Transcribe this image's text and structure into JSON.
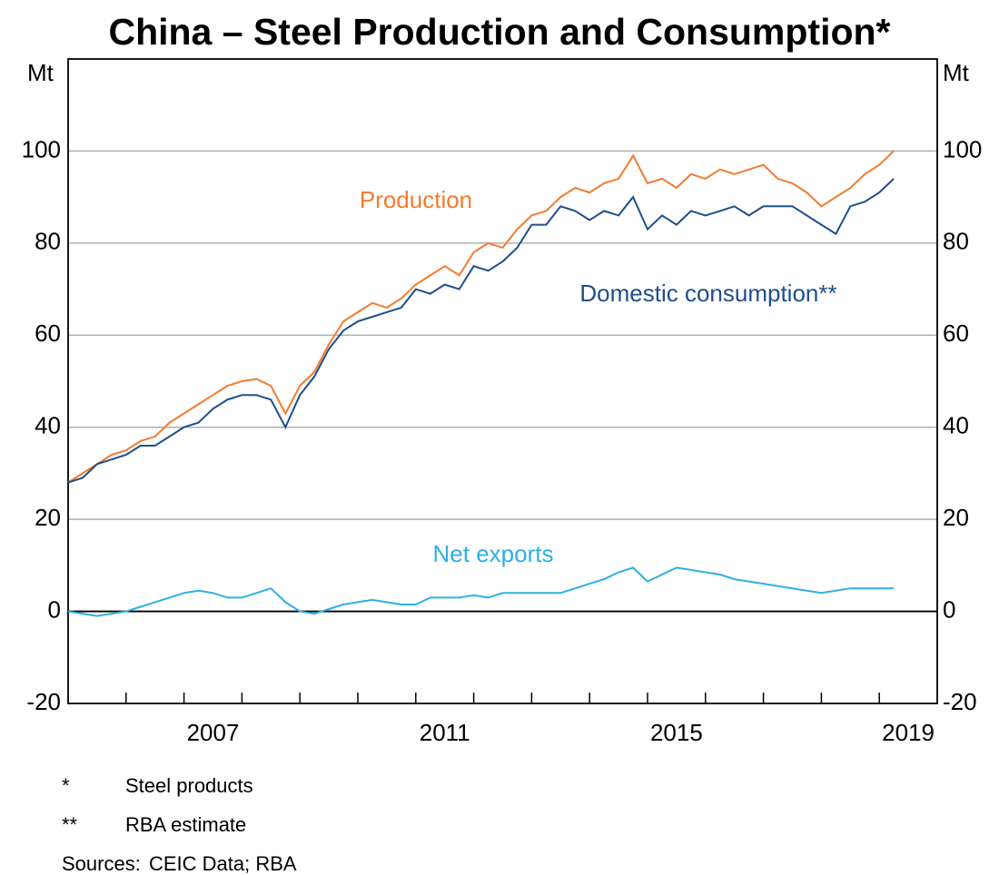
{
  "chart_data": {
    "type": "line",
    "title": "China – Steel Production and Consumption*",
    "y_unit_label": "Mt",
    "y2_unit_label": "Mt",
    "x": [
      2005.0,
      2005.25,
      2005.5,
      2005.75,
      2006.0,
      2006.25,
      2006.5,
      2006.75,
      2007.0,
      2007.25,
      2007.5,
      2007.75,
      2008.0,
      2008.25,
      2008.5,
      2008.75,
      2009.0,
      2009.25,
      2009.5,
      2009.75,
      2010.0,
      2010.25,
      2010.5,
      2010.75,
      2011.0,
      2011.25,
      2011.5,
      2011.75,
      2012.0,
      2012.25,
      2012.5,
      2012.75,
      2013.0,
      2013.25,
      2013.5,
      2013.75,
      2014.0,
      2014.25,
      2014.5,
      2014.75,
      2015.0,
      2015.25,
      2015.5,
      2015.75,
      2016.0,
      2016.25,
      2016.5,
      2016.75,
      2017.0,
      2017.25,
      2017.5,
      2017.75,
      2018.0,
      2018.25,
      2018.5,
      2018.75,
      2019.0,
      2019.25
    ],
    "series": [
      {
        "name": "Production",
        "color": "#f47b30",
        "values": [
          28,
          30,
          32,
          34,
          35,
          37,
          38,
          41,
          43,
          45,
          47,
          49,
          50,
          50.5,
          49,
          43,
          49,
          52,
          58,
          63,
          65,
          67,
          66,
          68,
          71,
          73,
          75,
          73,
          78,
          80,
          79,
          83,
          86,
          87,
          90,
          92,
          91,
          93,
          94,
          99,
          93,
          94,
          92,
          95,
          94,
          96,
          95,
          96,
          97,
          94,
          93,
          91,
          88,
          90,
          92,
          95,
          97,
          100
        ]
      },
      {
        "name": "Domestic consumption**",
        "color": "#1f4e8c",
        "values": [
          28,
          29,
          32,
          33,
          34,
          36,
          36,
          38,
          40,
          41,
          44,
          46,
          47,
          47,
          46,
          40,
          47,
          51,
          57,
          61,
          63,
          64,
          65,
          66,
          70,
          69,
          71,
          70,
          75,
          74,
          76,
          79,
          84,
          84,
          88,
          87,
          85,
          87,
          86,
          90,
          83,
          86,
          84,
          87,
          86,
          87,
          88,
          86,
          88,
          88,
          88,
          86,
          84,
          82,
          88,
          89,
          91,
          94
        ]
      },
      {
        "name": "Net exports",
        "color": "#2eaee6",
        "values": [
          0,
          -0.5,
          -1,
          -0.5,
          0,
          1,
          2,
          3,
          4,
          4.5,
          4,
          3,
          3,
          4,
          5,
          2,
          0,
          -0.5,
          0.5,
          1.5,
          2,
          2.5,
          2,
          1.5,
          1.5,
          3,
          3,
          3,
          3.5,
          3,
          4,
          4,
          4,
          4,
          4,
          5,
          6,
          7,
          8.5,
          9.5,
          6.5,
          8,
          9.5,
          9,
          8.5,
          8,
          7,
          6.5,
          6,
          5.5,
          5,
          4.5,
          4,
          4.5,
          5,
          5,
          5,
          5
        ]
      }
    ],
    "xlim": [
      2005,
      2020
    ],
    "xticks": [
      {
        "value": 2007.5,
        "label": "2007"
      },
      {
        "value": 2011.5,
        "label": "2011"
      },
      {
        "value": 2015.5,
        "label": "2015"
      },
      {
        "value": 2019.5,
        "label": "2019"
      }
    ],
    "year_ticks": [
      2006,
      2007,
      2008,
      2009,
      2010,
      2011,
      2012,
      2013,
      2014,
      2015,
      2016,
      2017,
      2018,
      2019
    ],
    "ylim": [
      -20,
      120
    ],
    "yticks": [
      -20,
      0,
      20,
      40,
      60,
      80,
      100
    ],
    "y2lim": [
      -20,
      120
    ],
    "y2ticks": [
      -20,
      0,
      20,
      40,
      60,
      80,
      100
    ],
    "grid": true,
    "footnotes": [
      {
        "marker": "*",
        "text": "Steel products"
      },
      {
        "marker": "**",
        "text": "RBA estimate"
      },
      {
        "marker": "Sources:",
        "text": "CEIC Data; RBA"
      }
    ]
  }
}
